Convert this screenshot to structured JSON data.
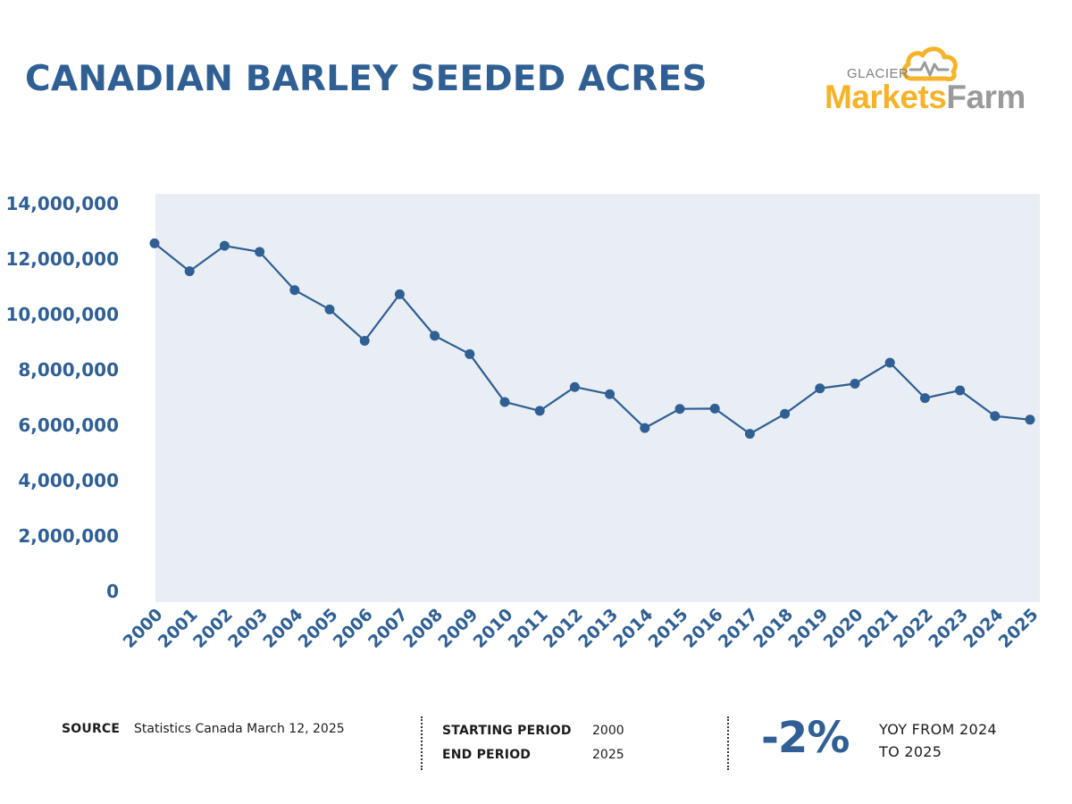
{
  "header": {
    "title": "CANADIAN BARLEY SEEDED ACRES"
  },
  "logo": {
    "small_text": "GLACIER",
    "brand_part1": "Markets",
    "brand_part2": "Farm",
    "icon": "cloud-heartbeat-icon",
    "colors": {
      "primary": "#f5b32a",
      "secondary": "#9a9a9a"
    }
  },
  "chart_data": {
    "type": "line",
    "title": "CANADIAN BARLEY SEEDED ACRES",
    "xlabel": "",
    "ylabel": "",
    "x": [
      "2000",
      "2001",
      "2002",
      "2003",
      "2004",
      "2005",
      "2006",
      "2007",
      "2008",
      "2009",
      "2010",
      "2011",
      "2012",
      "2013",
      "2014",
      "2015",
      "2016",
      "2017",
      "2018",
      "2019",
      "2020",
      "2021",
      "2022",
      "2023",
      "2024",
      "2025"
    ],
    "series": [
      {
        "values": [
          12570000,
          11560000,
          12480000,
          12260000,
          10880000,
          10180000,
          9050000,
          10730000,
          9230000,
          8570000,
          6840000,
          6520000,
          7380000,
          7120000,
          5900000,
          6590000,
          6600000,
          5690000,
          6410000,
          7330000,
          7500000,
          8260000,
          6980000,
          7260000,
          6330000,
          6200000
        ]
      }
    ],
    "ylim": [
      0,
      14000000
    ],
    "yticks": [
      0,
      2000000,
      4000000,
      6000000,
      8000000,
      10000000,
      12000000,
      14000000
    ],
    "grid": false,
    "legend": "none",
    "colors": {
      "line": "#2f5f93",
      "plot_background": "#e9eef4"
    }
  },
  "footer": {
    "source_label": "SOURCE",
    "source_value": "Statistics Canada March 12, 2025",
    "start_label": "STARTING PERIOD",
    "start_value": "2000",
    "end_label": "END PERIOD",
    "end_value": "2025",
    "yoy_value": "-2%",
    "yoy_line1": "YOY FROM 2024",
    "yoy_line2": "TO 2025"
  }
}
